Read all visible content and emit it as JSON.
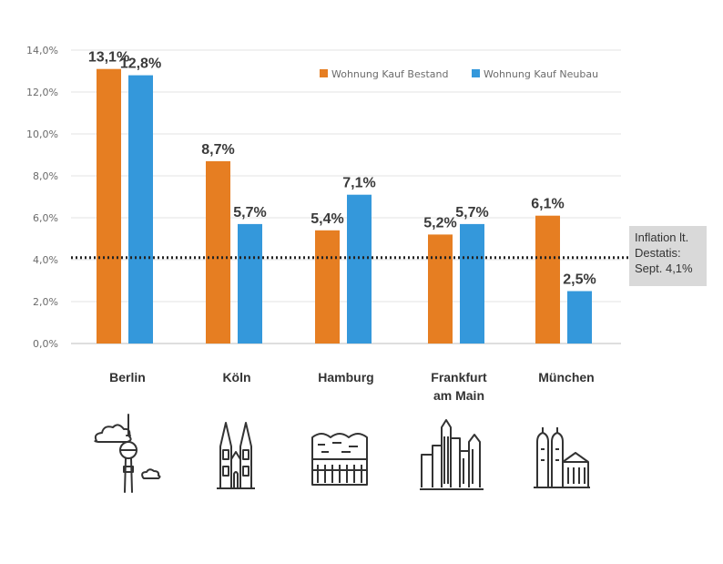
{
  "chart_data": {
    "type": "bar",
    "categories": [
      "Berlin",
      "Köln",
      "Hamburg",
      "Frankfurt am Main",
      "München"
    ],
    "category_lines": [
      [
        "Berlin"
      ],
      [
        "Köln"
      ],
      [
        "Hamburg"
      ],
      [
        "Frankfurt",
        "am Main"
      ],
      [
        "München"
      ]
    ],
    "series": [
      {
        "name": "Wohnung Kauf Bestand",
        "color": "#e67e22",
        "values": [
          13.1,
          8.7,
          5.4,
          5.2,
          6.1
        ],
        "labels": [
          "13,1%",
          "8,7%",
          "5,4%",
          "5,2%",
          "6,1%"
        ]
      },
      {
        "name": "Wohnung Kauf Neubau",
        "color": "#3498db",
        "values": [
          12.8,
          5.7,
          7.1,
          5.7,
          2.5
        ],
        "labels": [
          "12,8%",
          "5,7%",
          "7,1%",
          "5,7%",
          "2,5%"
        ]
      }
    ],
    "ylim": [
      0,
      14
    ],
    "yticks": [
      0,
      2,
      4,
      6,
      8,
      10,
      12,
      14
    ],
    "ytick_labels": [
      "0,0%",
      "2,0%",
      "4,0%",
      "6,0%",
      "8,0%",
      "10,0%",
      "12,0%",
      "14,0%"
    ],
    "reference_line": {
      "value": 4.1,
      "style": "dotted",
      "color": "#222222"
    },
    "annotation": {
      "lines": [
        "Inflation lt.",
        "Destatis:",
        "Sept. 4,1%"
      ]
    },
    "grid": true,
    "legend_position": "top-right",
    "city_icons": [
      "tv-tower-icon",
      "cathedral-icon",
      "elbphilharmonie-icon",
      "skyline-icon",
      "frauenkirche-icon"
    ]
  }
}
